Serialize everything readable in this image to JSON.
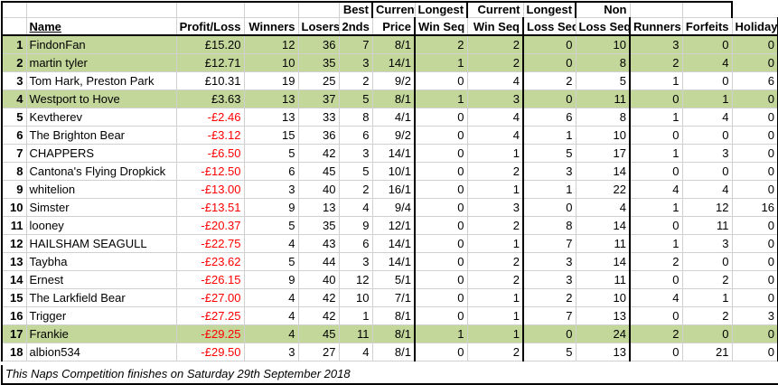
{
  "headers": {
    "name": "Name",
    "profit_loss": "Profit/Loss",
    "winners": "Winners",
    "losers": "Losers",
    "seconds": "2nds",
    "best_price_top": "Best",
    "best_price_bottom": "Price",
    "current_win_top": "Current",
    "current_win_bottom": "Win Seq",
    "longest_win_top": "Longest",
    "longest_win_bottom": "Win Seq",
    "current_loss_top": "Current",
    "current_loss_bottom": "Loss Seq",
    "longest_loss_top": "Longest",
    "longest_loss_bottom": "Loss Seq",
    "non_runners_top": "Non",
    "non_runners_bottom": "Runners",
    "forfeits": "Forfeits",
    "holiday": "Holiday"
  },
  "rows": [
    {
      "rank": "1",
      "name": "FindonFan",
      "pl": "£15.20",
      "negative": false,
      "highlight": true,
      "winners": "12",
      "losers": "36",
      "seconds": "7",
      "best": "8/1",
      "cws": "2",
      "lws": "2",
      "cls": "0",
      "lls": "10",
      "nr": "3",
      "forfeits": "0",
      "holiday": "0"
    },
    {
      "rank": "2",
      "name": "martin tyler",
      "pl": "£12.71",
      "negative": false,
      "highlight": true,
      "winners": "10",
      "losers": "35",
      "seconds": "3",
      "best": "14/1",
      "cws": "1",
      "lws": "2",
      "cls": "0",
      "lls": "8",
      "nr": "2",
      "forfeits": "4",
      "holiday": "0"
    },
    {
      "rank": "3",
      "name": "Tom Hark, Preston Park",
      "pl": "£10.31",
      "negative": false,
      "highlight": false,
      "winners": "19",
      "losers": "25",
      "seconds": "2",
      "best": "9/2",
      "cws": "0",
      "lws": "4",
      "cls": "2",
      "lls": "5",
      "nr": "1",
      "forfeits": "0",
      "holiday": "6"
    },
    {
      "rank": "4",
      "name": "Westport to Hove",
      "pl": "£3.63",
      "negative": false,
      "highlight": true,
      "winners": "13",
      "losers": "37",
      "seconds": "5",
      "best": "8/1",
      "cws": "1",
      "lws": "3",
      "cls": "0",
      "lls": "11",
      "nr": "0",
      "forfeits": "1",
      "holiday": "0"
    },
    {
      "rank": "5",
      "name": "Kevtherev",
      "pl": "-£2.46",
      "negative": true,
      "highlight": false,
      "winners": "13",
      "losers": "33",
      "seconds": "8",
      "best": "4/1",
      "cws": "0",
      "lws": "4",
      "cls": "6",
      "lls": "8",
      "nr": "1",
      "forfeits": "4",
      "holiday": "0"
    },
    {
      "rank": "6",
      "name": "The Brighton Bear",
      "pl": "-£3.12",
      "negative": true,
      "highlight": false,
      "winners": "15",
      "losers": "36",
      "seconds": "6",
      "best": "9/2",
      "cws": "0",
      "lws": "4",
      "cls": "1",
      "lls": "10",
      "nr": "0",
      "forfeits": "0",
      "holiday": "0"
    },
    {
      "rank": "7",
      "name": "CHAPPERS",
      "pl": "-£6.50",
      "negative": true,
      "highlight": false,
      "winners": "5",
      "losers": "42",
      "seconds": "3",
      "best": "14/1",
      "cws": "0",
      "lws": "1",
      "cls": "5",
      "lls": "17",
      "nr": "1",
      "forfeits": "3",
      "holiday": "0"
    },
    {
      "rank": "8",
      "name": "Cantona's Flying Dropkick",
      "pl": "-£12.50",
      "negative": true,
      "highlight": false,
      "winners": "6",
      "losers": "45",
      "seconds": "5",
      "best": "10/1",
      "cws": "0",
      "lws": "2",
      "cls": "3",
      "lls": "14",
      "nr": "0",
      "forfeits": "0",
      "holiday": "0"
    },
    {
      "rank": "9",
      "name": "whitelion",
      "pl": "-£13.00",
      "negative": true,
      "highlight": false,
      "winners": "3",
      "losers": "40",
      "seconds": "2",
      "best": "16/1",
      "cws": "0",
      "lws": "1",
      "cls": "1",
      "lls": "22",
      "nr": "4",
      "forfeits": "4",
      "holiday": "0"
    },
    {
      "rank": "10",
      "name": "Simster",
      "pl": "-£13.51",
      "negative": true,
      "highlight": false,
      "winners": "9",
      "losers": "13",
      "seconds": "4",
      "best": "9/4",
      "cws": "0",
      "lws": "3",
      "cls": "0",
      "lls": "4",
      "nr": "1",
      "forfeits": "12",
      "holiday": "16"
    },
    {
      "rank": "11",
      "name": "looney",
      "pl": "-£20.37",
      "negative": true,
      "highlight": false,
      "winners": "5",
      "losers": "35",
      "seconds": "9",
      "best": "12/1",
      "cws": "0",
      "lws": "2",
      "cls": "8",
      "lls": "14",
      "nr": "0",
      "forfeits": "11",
      "holiday": "0"
    },
    {
      "rank": "12",
      "name": "HAILSHAM SEAGULL",
      "pl": "-£22.75",
      "negative": true,
      "highlight": false,
      "winners": "4",
      "losers": "43",
      "seconds": "6",
      "best": "14/1",
      "cws": "0",
      "lws": "1",
      "cls": "7",
      "lls": "11",
      "nr": "1",
      "forfeits": "3",
      "holiday": "0"
    },
    {
      "rank": "13",
      "name": "Taybha",
      "pl": "-£23.62",
      "negative": true,
      "highlight": false,
      "winners": "5",
      "losers": "44",
      "seconds": "3",
      "best": "14/1",
      "cws": "0",
      "lws": "2",
      "cls": "3",
      "lls": "14",
      "nr": "2",
      "forfeits": "0",
      "holiday": "0"
    },
    {
      "rank": "14",
      "name": "Ernest",
      "pl": "-£26.15",
      "negative": true,
      "highlight": false,
      "winners": "9",
      "losers": "40",
      "seconds": "12",
      "best": "5/1",
      "cws": "0",
      "lws": "2",
      "cls": "3",
      "lls": "11",
      "nr": "0",
      "forfeits": "2",
      "holiday": "0"
    },
    {
      "rank": "15",
      "name": "The Larkfield Bear",
      "pl": "-£27.00",
      "negative": true,
      "highlight": false,
      "winners": "4",
      "losers": "42",
      "seconds": "10",
      "best": "7/1",
      "cws": "0",
      "lws": "1",
      "cls": "2",
      "lls": "10",
      "nr": "4",
      "forfeits": "1",
      "holiday": "0"
    },
    {
      "rank": "16",
      "name": "Trigger",
      "pl": "-£27.25",
      "negative": true,
      "highlight": false,
      "winners": "4",
      "losers": "42",
      "seconds": "1",
      "best": "8/1",
      "cws": "0",
      "lws": "1",
      "cls": "7",
      "lls": "13",
      "nr": "0",
      "forfeits": "2",
      "holiday": "3"
    },
    {
      "rank": "17",
      "name": "Frankie",
      "pl": "-£29.25",
      "negative": true,
      "highlight": true,
      "winners": "4",
      "losers": "45",
      "seconds": "11",
      "best": "8/1",
      "cws": "1",
      "lws": "1",
      "cls": "0",
      "lls": "24",
      "nr": "2",
      "forfeits": "0",
      "holiday": "0"
    },
    {
      "rank": "18",
      "name": "albion534",
      "pl": "-£29.50",
      "negative": true,
      "highlight": false,
      "winners": "3",
      "losers": "27",
      "seconds": "4",
      "best": "8/1",
      "cws": "0",
      "lws": "2",
      "cls": "5",
      "lls": "13",
      "nr": "0",
      "forfeits": "21",
      "holiday": "0"
    }
  ],
  "footer_note": "This Naps Competition finishes on Saturday 29th September 2018",
  "colors": {
    "highlight": "#c4d79b",
    "negative": "#ff0000",
    "gridline": "#d0d0d0",
    "border": "#000000"
  }
}
